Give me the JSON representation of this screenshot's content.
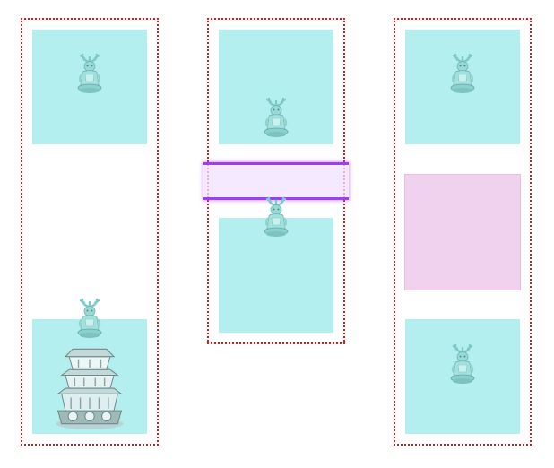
{
  "board": {
    "columns": [
      {
        "name": "column-1",
        "slots": [
          "idol",
          "empty",
          "tower-with-idol"
        ]
      },
      {
        "name": "column-2",
        "slots": [
          "idol",
          "selected-row",
          "idol"
        ]
      },
      {
        "name": "column-3",
        "slots": [
          "idol",
          "blocked",
          "idol"
        ]
      }
    ]
  },
  "colors": {
    "frame": "#e01818",
    "tile": "#b4efef",
    "blocked_tile": "#f0d2ee",
    "selection": "#9b3ff0",
    "idol": "#8ed8d6"
  },
  "icons": {
    "idol": "antlered-idol-icon",
    "tower": "pagoda-tower-icon"
  }
}
